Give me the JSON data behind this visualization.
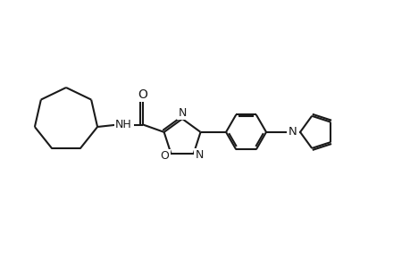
{
  "background_color": "#ffffff",
  "line_color": "#1a1a1a",
  "line_width": 1.5,
  "figure_size": [
    4.6,
    3.0
  ],
  "dpi": 100,
  "xlim": [
    0,
    9.2
  ],
  "ylim": [
    0,
    6
  ]
}
